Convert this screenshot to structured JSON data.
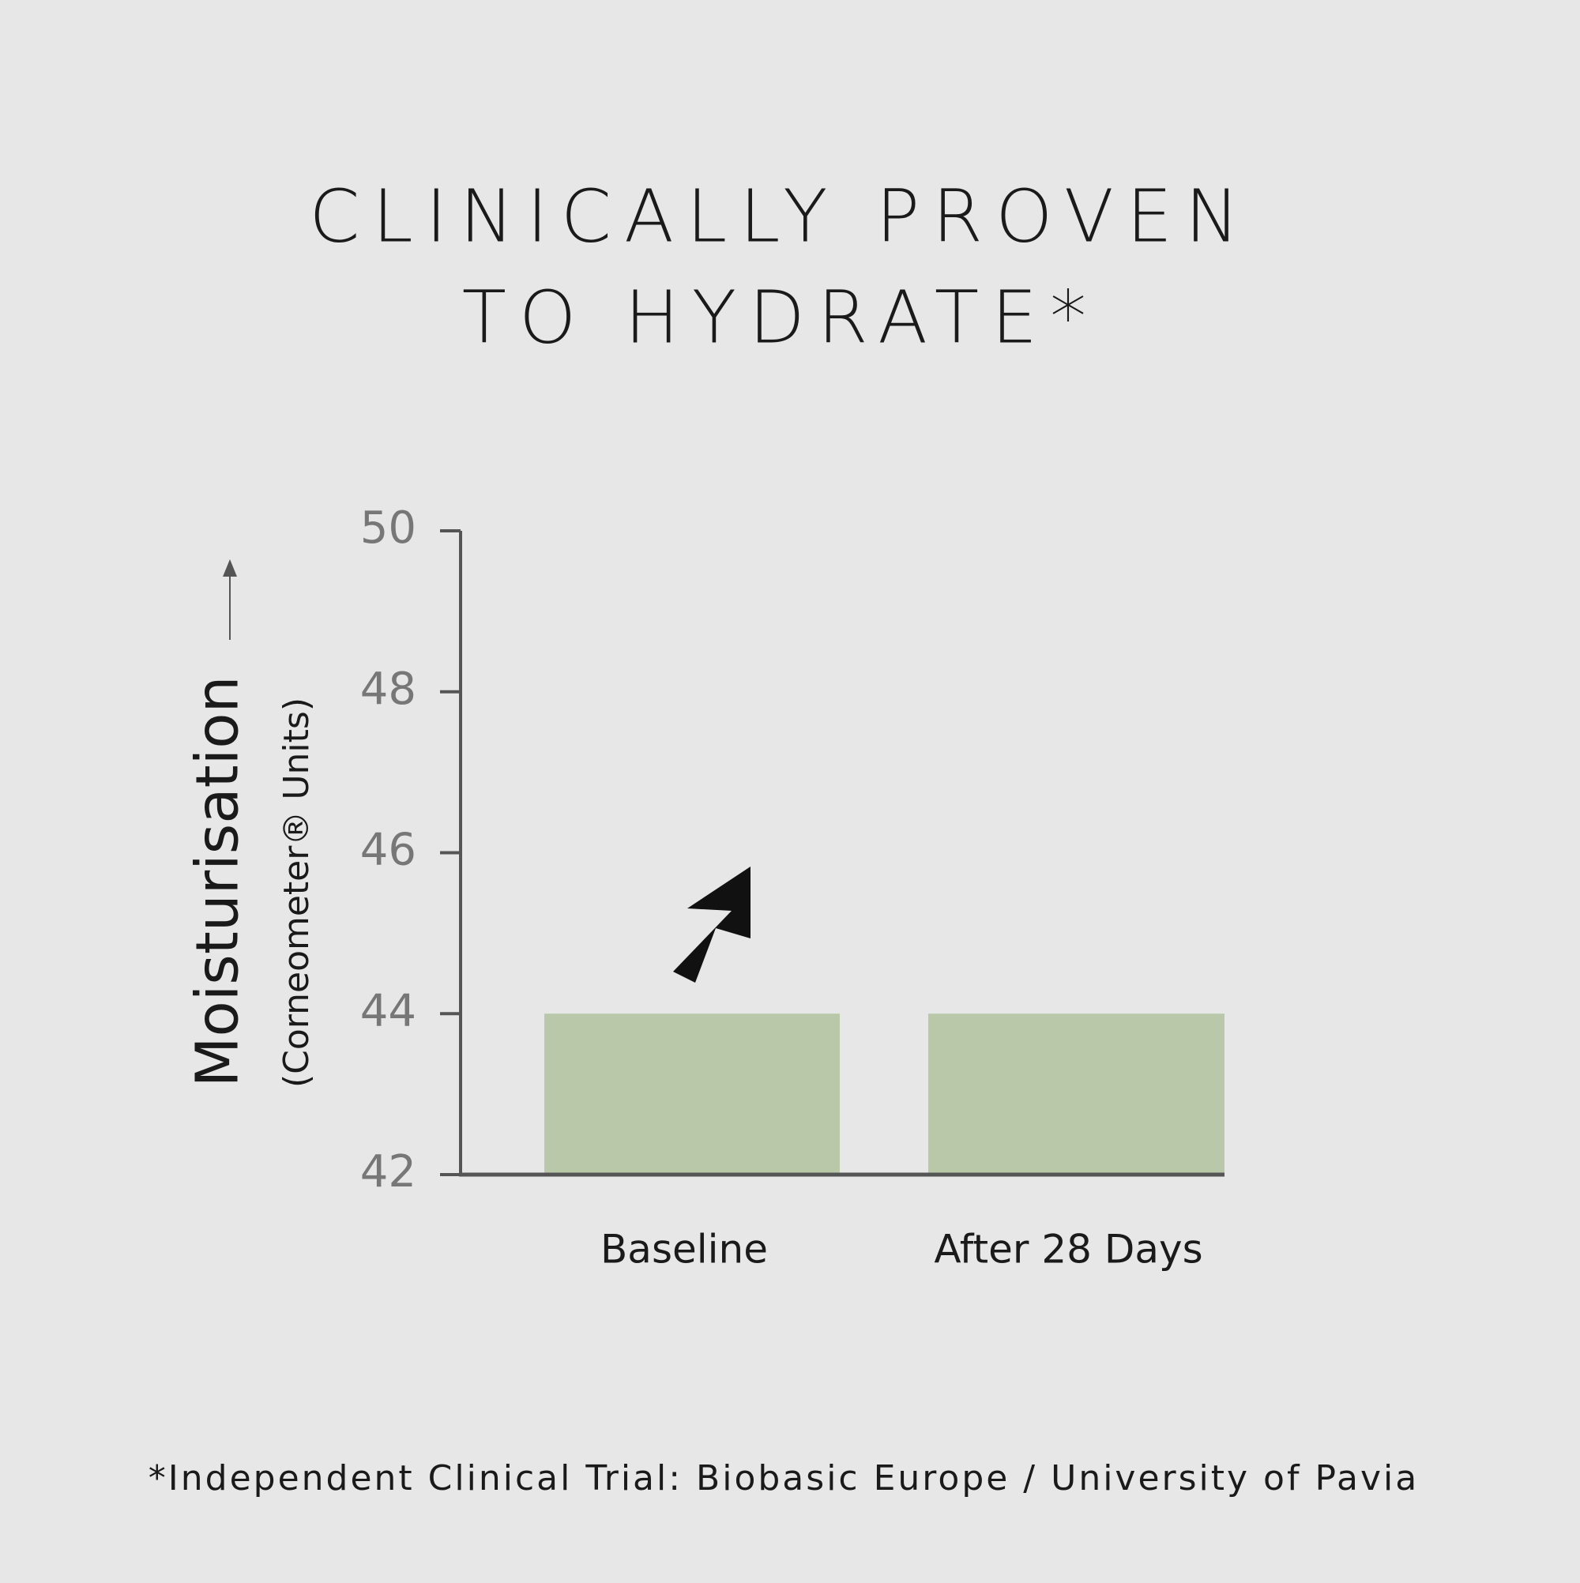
{
  "chart_data": {
    "type": "bar",
    "title": [
      "CLINICALLY PROVEN",
      "TO HYDRATE*"
    ],
    "y_label": "Moisturisation",
    "y_sublabel": "(Corneometer® Units)",
    "categories": [
      "Baseline",
      "After 28 Days"
    ],
    "values": [
      44,
      44
    ],
    "color": "#b9c8a9",
    "ylim": [
      42,
      50
    ],
    "yticks": [
      42,
      44,
      46,
      48,
      50
    ],
    "footnote": "*Independent Clinical Trial: Biobasic Europe / University of Pavia"
  }
}
